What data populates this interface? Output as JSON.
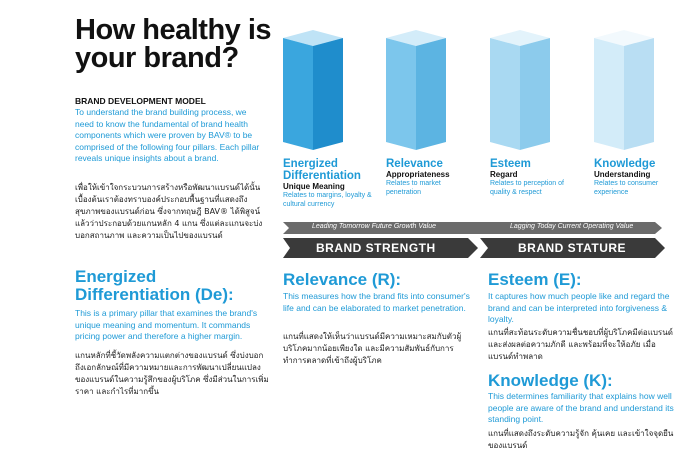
{
  "header": {
    "title": "How healthy is your brand?"
  },
  "model": {
    "heading": "BRAND DEVELOPMENT MODEL",
    "intro": "To understand the brand building process, we need to know the fundamental of brand health components which were proven by BAV® to be comprised of the following four pillars. Each pillar reveals unique insights about a brand.",
    "thai": "เพื่อให้เข้าใจกระบวนการสร้างหรือพัฒนาแบรนด์ได้นั้น เบื้องต้นเราต้องทราบองค์ประกอบพื้นฐานที่แสดงถึงสุขภาพของแบรนด์ก่อน ซึ่งจากทฤษฎี BAV® ได้พิสูจน์แล้วว่าประกอบด้วยแกนหลัก 4 แกน ซึ่งแต่ละแกนจะบ่งบอกสถานภาพ และความเป็นไปของแบรนด์"
  },
  "pillars": [
    {
      "title": "Energized Differentiation",
      "subtitle": "Unique Meaning",
      "description": "Relates to margins, loyalty & cultural currency"
    },
    {
      "title": "Relevance",
      "subtitle": "Appropriateness",
      "description": "Relates to market penetration"
    },
    {
      "title": "Esteem",
      "subtitle": "Regard",
      "description": "Relates to perception of quality & respect"
    },
    {
      "title": "Knowledge",
      "subtitle": "Understanding",
      "description": "Relates to consumer experience"
    }
  ],
  "band": {
    "leading": "Leading Tomorrow Future Growth Value",
    "lagging": "Lagging Today Current Operating Value",
    "strength": "BRAND STRENGTH",
    "stature": "BRAND STATURE"
  },
  "sections": [
    {
      "heading": "Energized Differentiation (De):",
      "text": "This is a primary pillar that examines the brand's unique meaning and momentum. It commands pricing power and therefore a higher margin.",
      "thai": "แกนหลักที่ชี้วัดพลังความแตกต่างของแบรนด์ ซึ่งบ่งบอกถึงเอกลักษณ์ที่มีความหมายและการพัฒนาเปลี่ยนแปลงของแบรนด์ในความรู้สึกของผู้บริโภค ซึ่งมีส่วนในการเพิ่มราคา และกำไรที่มากขึ้น"
    },
    {
      "heading": "Relevance (R):",
      "text": "This measures how the brand fits into consumer's life and can be elaborated to market penetration.",
      "thai": "แกนที่แสดงให้เห็นว่าแบรนด์มีความเหมาะสมกับตัวผู้บริโภคมากน้อยเพียงใด และมีความสัมพันธ์กับการทำการตลาดที่เข้าถึงผู้บริโภค"
    },
    {
      "heading": "Esteem (E):",
      "text": "It captures how much people like and regard the brand and can be interpreted into forgiveness & loyalty.",
      "thai": "แกนที่สะท้อนระดับความชื่นชอบที่ผู้บริโภคมีต่อแบรนด์ และส่งผลต่อความภักดี และพร้อมที่จะให้อภัย เมื่อแบรนด์ทำพลาด"
    },
    {
      "heading": "Knowledge (K):",
      "text": "This determines familiarity that explains how well people are aware of the brand and understand its standing point.",
      "thai": "แกนที่แสดงถึงระดับความรู้จัก คุ้นเคย และเข้าใจจุดยืนของแบรนด์"
    }
  ]
}
